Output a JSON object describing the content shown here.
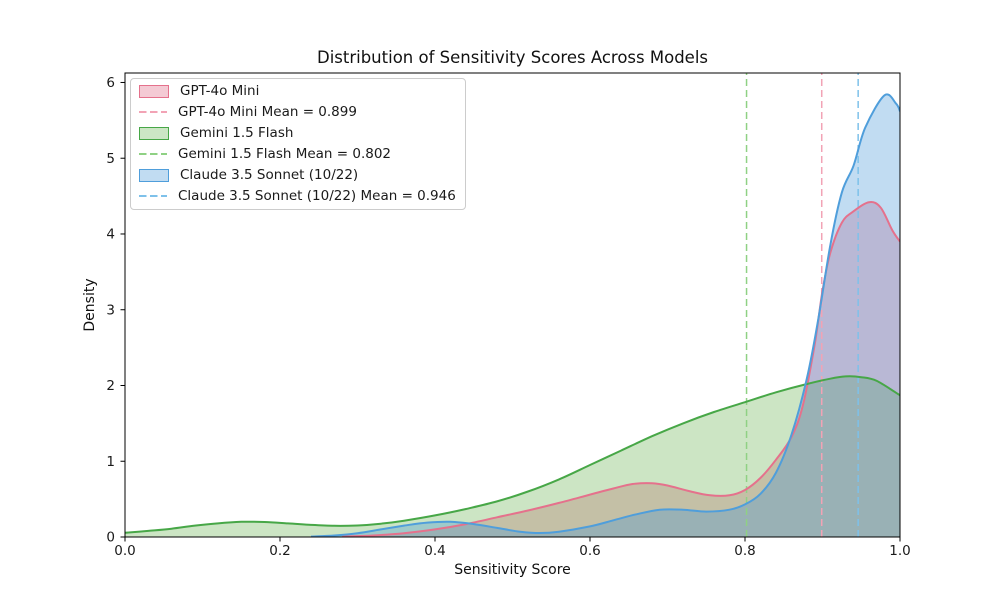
{
  "chart_data": {
    "type": "area",
    "subtype": "kde_density",
    "title": "Distribution of Sensitivity Scores Across Models",
    "xlabel": "Sensitivity Score",
    "ylabel": "Density",
    "xlim": [
      0,
      1.0
    ],
    "ylim": [
      0,
      6.125
    ],
    "xticks": [
      0,
      0.2,
      0.4,
      0.6,
      0.8,
      1.0
    ],
    "xtick_labels": [
      "0.0",
      "0.2",
      "0.4",
      "0.6",
      "0.8",
      "1.0"
    ],
    "yticks": [
      0,
      1,
      2,
      3,
      4,
      5,
      6
    ],
    "ytick_labels": [
      "0",
      "1",
      "2",
      "3",
      "4",
      "5",
      "6"
    ],
    "grid": false,
    "legend_position": "upper-left",
    "series": [
      {
        "name": "GPT-4o Mini",
        "mean": 0.899,
        "mean_label": "GPT-4o Mini Mean = 0.899",
        "line_color": "#E5718C",
        "fill_color": "#DE5E7C",
        "fill_opacity": 0.33,
        "mean_line_color": "#F2A3B5",
        "points": [
          [
            0.28,
            0.005
          ],
          [
            0.32,
            0.02
          ],
          [
            0.36,
            0.05
          ],
          [
            0.4,
            0.1
          ],
          [
            0.44,
            0.17
          ],
          [
            0.48,
            0.26
          ],
          [
            0.52,
            0.35
          ],
          [
            0.56,
            0.45
          ],
          [
            0.6,
            0.56
          ],
          [
            0.63,
            0.64
          ],
          [
            0.655,
            0.7
          ],
          [
            0.68,
            0.71
          ],
          [
            0.7,
            0.68
          ],
          [
            0.73,
            0.6
          ],
          [
            0.755,
            0.55
          ],
          [
            0.78,
            0.55
          ],
          [
            0.8,
            0.62
          ],
          [
            0.82,
            0.78
          ],
          [
            0.84,
            1.02
          ],
          [
            0.86,
            1.32
          ],
          [
            0.875,
            1.75
          ],
          [
            0.89,
            2.55
          ],
          [
            0.9,
            3.25
          ],
          [
            0.91,
            3.75
          ],
          [
            0.925,
            4.15
          ],
          [
            0.94,
            4.3
          ],
          [
            0.96,
            4.42
          ],
          [
            0.975,
            4.35
          ],
          [
            0.99,
            4.05
          ],
          [
            1.0,
            3.9
          ]
        ]
      },
      {
        "name": "Gemini 1.5 Flash",
        "mean": 0.802,
        "mean_label": "Gemini 1.5 Flash Mean = 0.802",
        "line_color": "#47A747",
        "fill_color": "#55AA3C",
        "fill_opacity": 0.3,
        "mean_line_color": "#8FD184",
        "points": [
          [
            0.0,
            0.055
          ],
          [
            0.03,
            0.08
          ],
          [
            0.06,
            0.11
          ],
          [
            0.09,
            0.15
          ],
          [
            0.12,
            0.18
          ],
          [
            0.15,
            0.2
          ],
          [
            0.18,
            0.198
          ],
          [
            0.21,
            0.18
          ],
          [
            0.24,
            0.16
          ],
          [
            0.27,
            0.148
          ],
          [
            0.3,
            0.152
          ],
          [
            0.33,
            0.175
          ],
          [
            0.36,
            0.215
          ],
          [
            0.4,
            0.285
          ],
          [
            0.44,
            0.37
          ],
          [
            0.48,
            0.47
          ],
          [
            0.52,
            0.6
          ],
          [
            0.56,
            0.76
          ],
          [
            0.6,
            0.95
          ],
          [
            0.64,
            1.14
          ],
          [
            0.68,
            1.33
          ],
          [
            0.72,
            1.5
          ],
          [
            0.76,
            1.65
          ],
          [
            0.8,
            1.78
          ],
          [
            0.84,
            1.91
          ],
          [
            0.88,
            2.02
          ],
          [
            0.91,
            2.09
          ],
          [
            0.93,
            2.12
          ],
          [
            0.95,
            2.11
          ],
          [
            0.97,
            2.06
          ],
          [
            1.0,
            1.87
          ]
        ]
      },
      {
        "name": "Claude 3.5 Sonnet (10/22)",
        "mean": 0.946,
        "mean_label": "Claude 3.5 Sonnet (10/22) Mean = 0.946",
        "line_color": "#4F9EDB",
        "fill_color": "#3E93D6",
        "fill_opacity": 0.32,
        "mean_line_color": "#7EC1EA",
        "points": [
          [
            0.24,
            0.005
          ],
          [
            0.27,
            0.02
          ],
          [
            0.3,
            0.05
          ],
          [
            0.33,
            0.1
          ],
          [
            0.36,
            0.15
          ],
          [
            0.39,
            0.19
          ],
          [
            0.42,
            0.2
          ],
          [
            0.45,
            0.17
          ],
          [
            0.48,
            0.12
          ],
          [
            0.51,
            0.07
          ],
          [
            0.535,
            0.053
          ],
          [
            0.56,
            0.07
          ],
          [
            0.6,
            0.14
          ],
          [
            0.63,
            0.22
          ],
          [
            0.66,
            0.3
          ],
          [
            0.69,
            0.36
          ],
          [
            0.72,
            0.36
          ],
          [
            0.75,
            0.335
          ],
          [
            0.78,
            0.36
          ],
          [
            0.8,
            0.43
          ],
          [
            0.82,
            0.57
          ],
          [
            0.84,
            0.85
          ],
          [
            0.86,
            1.35
          ],
          [
            0.88,
            2.1
          ],
          [
            0.895,
            2.9
          ],
          [
            0.91,
            3.85
          ],
          [
            0.925,
            4.55
          ],
          [
            0.94,
            4.9
          ],
          [
            0.955,
            5.4
          ],
          [
            0.98,
            5.83
          ],
          [
            0.995,
            5.72
          ],
          [
            1.0,
            5.62
          ]
        ]
      }
    ]
  }
}
